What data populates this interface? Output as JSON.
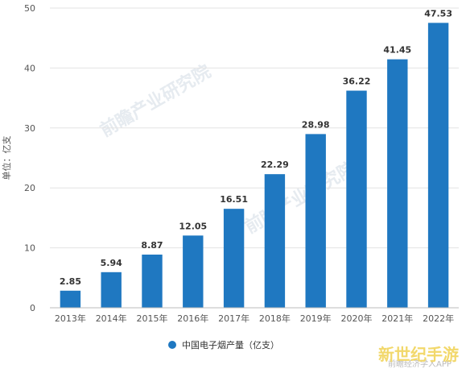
{
  "chart_data": {
    "type": "bar",
    "title": "",
    "xlabel": "",
    "ylabel": "单位：亿支",
    "ylim": [
      0,
      50
    ],
    "yticks": [
      0,
      10,
      20,
      30,
      40,
      50
    ],
    "categories": [
      "2013年",
      "2014年",
      "2015年",
      "2016年",
      "2017年",
      "2018年",
      "2019年",
      "2020年",
      "2021年",
      "2022年"
    ],
    "series": [
      {
        "name": "中国电子烟产量（亿支）",
        "values": [
          2.85,
          5.94,
          8.87,
          12.05,
          16.51,
          22.29,
          28.98,
          36.22,
          41.45,
          47.53
        ],
        "color": "#1f78c1"
      }
    ],
    "data_labels": [
      "2.85",
      "5.94",
      "8.87",
      "12.05",
      "16.51",
      "22.29",
      "28.98",
      "36.22",
      "41.45",
      "47.53"
    ],
    "grid": true,
    "legend": "bottom-center"
  },
  "watermark": "前瞻产业研究院",
  "corner_logo": "新世纪手游",
  "corner_sub": "前瞻经济学人APP"
}
